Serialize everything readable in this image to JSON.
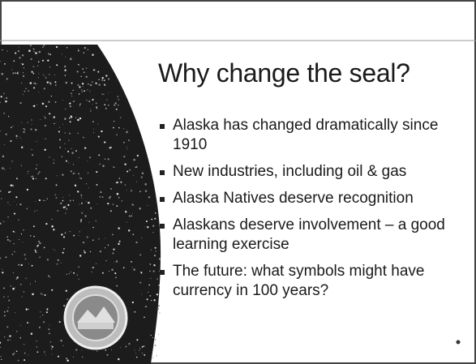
{
  "slide": {
    "title": "Why change the seal?",
    "bullets": [
      "Alaska has changed dramatically since 1910",
      "New industries, including oil & gas",
      "Alaska Natives deserve recognition",
      "Alaskans deserve involvement – a good learning exercise",
      "The future:  what symbols might have currency in 100 years?"
    ]
  }
}
